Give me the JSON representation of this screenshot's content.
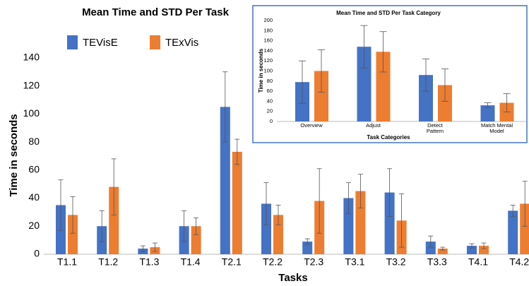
{
  "chart_data": [
    {
      "type": "bar",
      "title": "Mean Time and STD Per Task",
      "y_label": "Time in seconds",
      "x_label": "Tasks",
      "categories": [
        "T1.1",
        "T1.2",
        "T1.3",
        "T1.4",
        "T2.1",
        "T2.2",
        "T2.3",
        "T3.1",
        "T3.2",
        "T3.3",
        "T4.1",
        "T4.2"
      ],
      "series": [
        {
          "name": "TEVisE",
          "color": "#4472c4",
          "values": [
            35,
            20,
            4,
            20,
            105,
            36,
            9,
            40,
            44,
            9,
            6,
            31
          ],
          "errors": [
            18,
            11,
            2,
            11,
            25,
            15,
            2,
            11,
            17,
            4,
            1.5,
            4
          ]
        },
        {
          "name": "TExVis",
          "color": "#ed7d31",
          "values": [
            28,
            48,
            5,
            20,
            73,
            28,
            38,
            45,
            24,
            4,
            6,
            36
          ],
          "errors": [
            13,
            20,
            3,
            6,
            9,
            7,
            23,
            12,
            19,
            1,
            2,
            16
          ]
        }
      ],
      "ylim": [
        0,
        150
      ],
      "yticks": [
        0,
        20,
        40,
        60,
        80,
        100,
        120,
        140
      ],
      "grid": false
    },
    {
      "type": "bar",
      "title": "Mean Time and STD Per Task Category",
      "y_label": "Time in seconds",
      "x_label": "Task Categories",
      "categories": [
        "Overview",
        "Adjust",
        "Detect Pattern",
        "Match Mental Model"
      ],
      "series": [
        {
          "color": "#4472c4",
          "values": [
            78,
            148,
            92,
            32
          ],
          "errors": [
            42,
            42,
            32,
            5
          ]
        },
        {
          "color": "#ed7d31",
          "values": [
            100,
            138,
            72,
            37
          ],
          "errors": [
            42,
            40,
            32,
            18
          ]
        }
      ],
      "ylim": [
        0,
        200
      ],
      "yticks": [
        0,
        20,
        40,
        60,
        80,
        100,
        120,
        140,
        160,
        180,
        200
      ],
      "grid": false
    }
  ]
}
